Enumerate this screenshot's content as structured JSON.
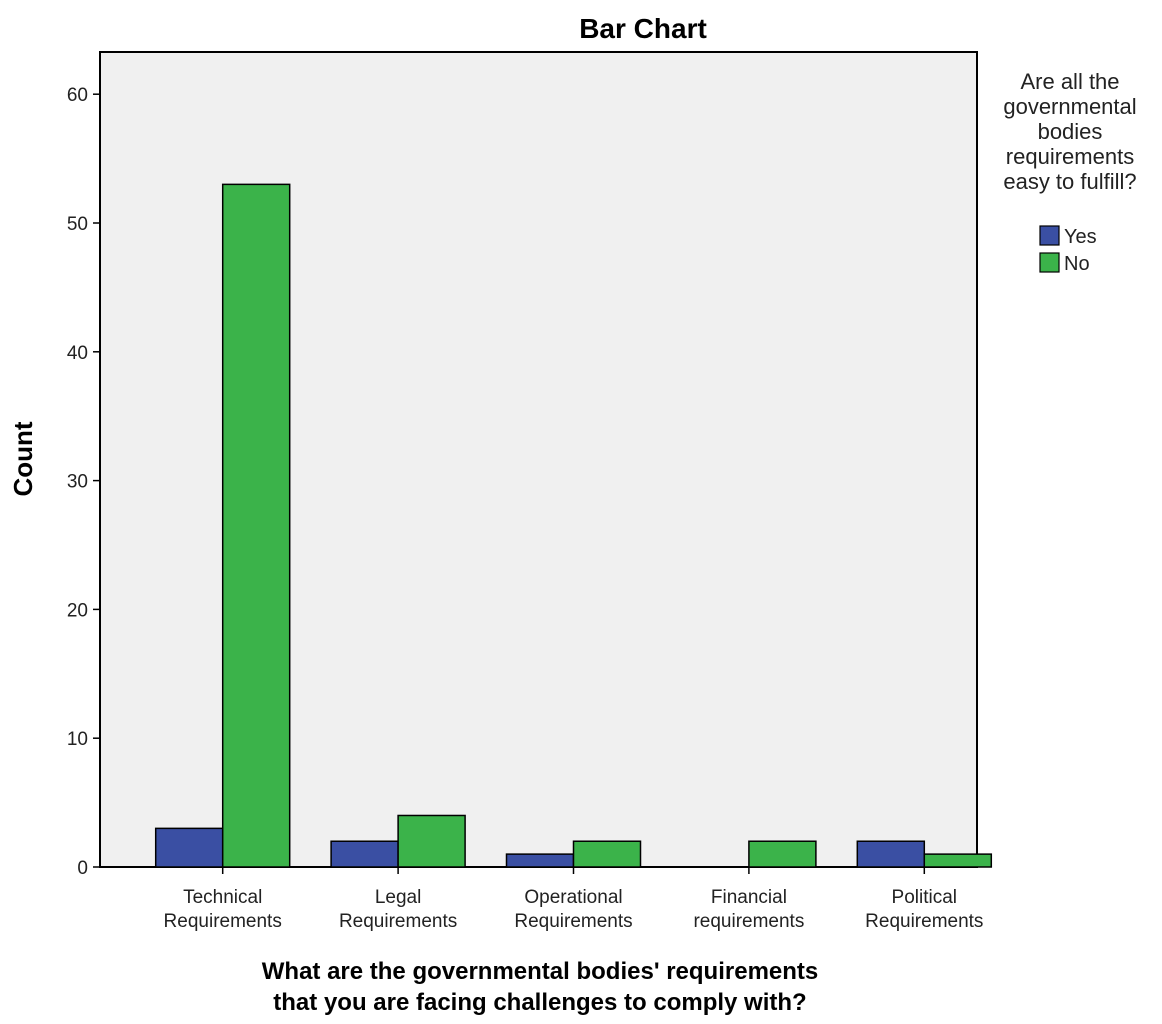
{
  "chart_data": {
    "type": "bar",
    "title": "Bar Chart",
    "xlabel_lines": [
      "What are the governmental bodies' requirements",
      "that you are facing challenges to comply with?"
    ],
    "ylabel": "Count",
    "ylim": [
      0,
      63
    ],
    "yticks": [
      0,
      10,
      20,
      30,
      40,
      50,
      60
    ],
    "categories": [
      [
        "Technical",
        "Requirements"
      ],
      [
        "Legal",
        "Requirements"
      ],
      [
        "Operational",
        "Requirements"
      ],
      [
        "Financial",
        "requirements"
      ],
      [
        "Political",
        "Requirements"
      ]
    ],
    "series": [
      {
        "name": "Yes",
        "color": "#3a4fa3",
        "values": [
          3,
          2,
          1,
          0,
          2
        ]
      },
      {
        "name": "No",
        "color": "#3bb34a",
        "values": [
          53,
          4,
          2,
          2,
          1
        ]
      }
    ],
    "legend": {
      "position": "right",
      "title_lines": [
        "Are all the",
        "governmental",
        "bodies",
        "requirements",
        "easy to fulfill?"
      ]
    },
    "plot_background": "#f0f0f0",
    "grid": false
  }
}
